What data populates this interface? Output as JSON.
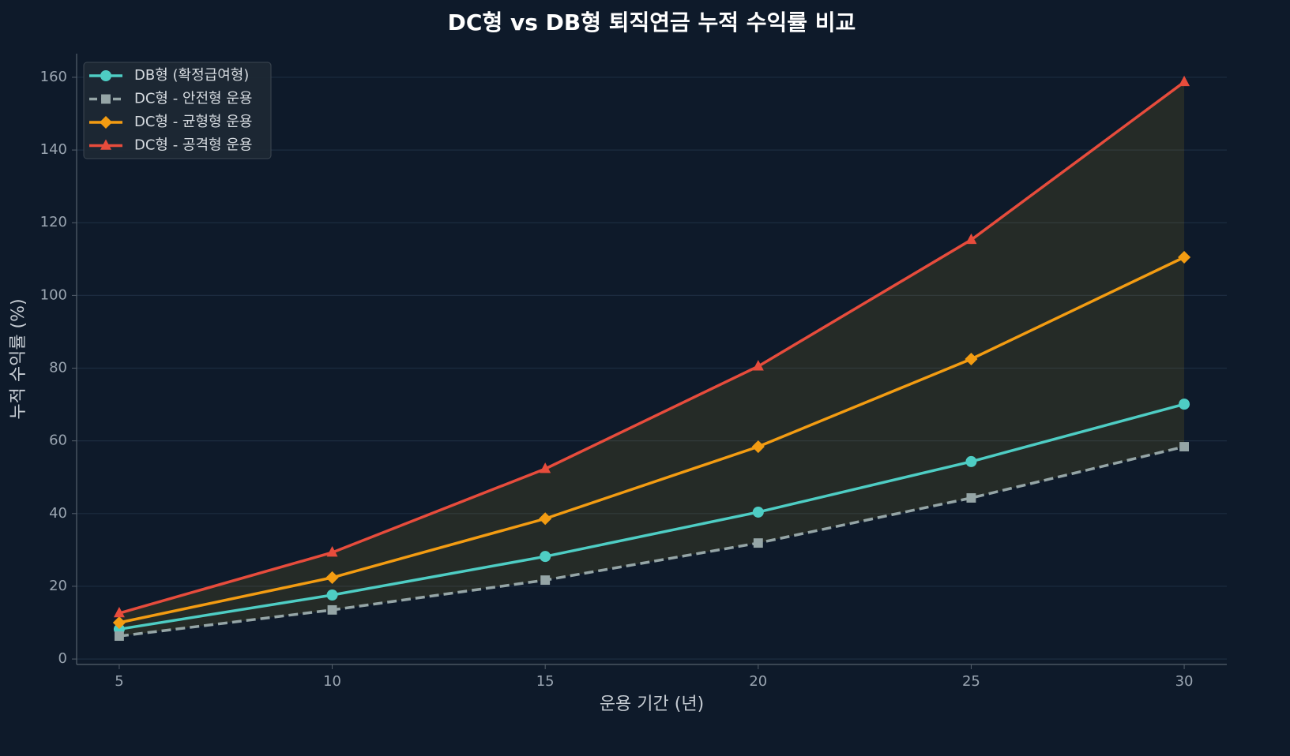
{
  "chart_data": {
    "type": "line",
    "title": "DC형 vs DB형 퇴직연금 누적 수익률 비교",
    "x_label": "운용 기간 (년)",
    "y_label": "누적 수익률 (%)",
    "x": [
      5,
      10,
      15,
      20,
      25,
      30
    ],
    "series": [
      {
        "name": "DB형 (확정급여형)",
        "color": "#4ecdc4",
        "marker": "circle",
        "dash": false,
        "values": [
          8.2,
          17.6,
          28.2,
          40.4,
          54.3,
          70.1
        ]
      },
      {
        "name": "DC형 - 안전형 운용",
        "color": "#95a5a6",
        "marker": "square",
        "dash": true,
        "values": [
          6.3,
          13.5,
          21.7,
          31.9,
          44.3,
          58.4
        ]
      },
      {
        "name": "DC형 - 균형형 운용",
        "color": "#f39c12",
        "marker": "diamond",
        "dash": false,
        "values": [
          10.0,
          22.4,
          38.6,
          58.4,
          82.5,
          110.5
        ]
      },
      {
        "name": "DC형 - 공격형 운용",
        "color": "#e74c3c",
        "marker": "triangle",
        "dash": false,
        "values": [
          12.6,
          29.3,
          52.3,
          80.5,
          115.3,
          158.7
        ]
      }
    ],
    "fill_between": {
      "from": 1,
      "to": 3,
      "color": "#f1c40f",
      "opacity": 0.1
    },
    "xlim": [
      4,
      31
    ],
    "xticks": [
      5,
      10,
      15,
      20,
      25,
      30
    ],
    "ylim": [
      -1.5,
      166.5
    ],
    "yticks": [
      0,
      20,
      40,
      60,
      80,
      100,
      120,
      140,
      160
    ],
    "grid": true,
    "legend": "upper-left"
  }
}
